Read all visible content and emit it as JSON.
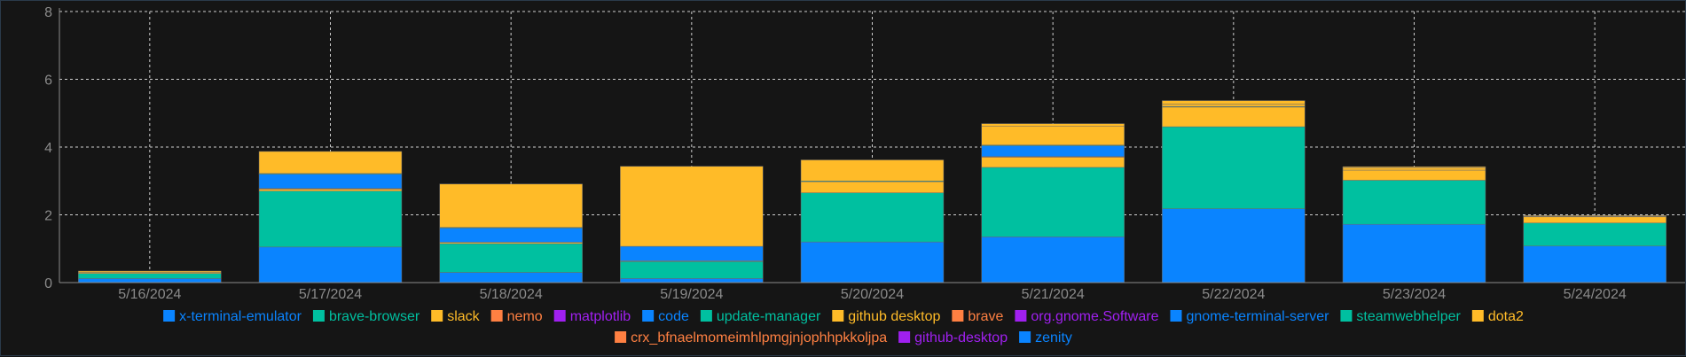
{
  "chart_data": {
    "type": "bar",
    "stacked": true,
    "categories": [
      "5/16/2024",
      "5/17/2024",
      "5/18/2024",
      "5/19/2024",
      "5/20/2024",
      "5/21/2024",
      "5/22/2024",
      "5/23/2024",
      "5/24/2024"
    ],
    "ylim": [
      0,
      8
    ],
    "yticks": [
      0,
      2,
      4,
      6,
      8
    ],
    "grid": true,
    "legend_position": "bottom",
    "series": [
      {
        "name": "x-terminal-emulator",
        "color": "#0a84ff",
        "values": [
          0.12,
          1.05,
          0.3,
          0.12,
          1.2,
          1.35,
          2.18,
          1.72,
          1.08
        ]
      },
      {
        "name": "brave-browser",
        "color": "#00c0a0",
        "values": [
          0.15,
          1.65,
          0.85,
          0.5,
          1.45,
          2.05,
          2.42,
          1.3,
          0.68
        ]
      },
      {
        "name": "slack",
        "color": "#ffbb28",
        "values": [
          0.03,
          0.06,
          0.04,
          0.02,
          0.33,
          0.3,
          0.58,
          0.3,
          0.18
        ]
      },
      {
        "name": "nemo",
        "color": "#ff8042",
        "values": [
          0,
          0.02,
          0,
          0,
          0,
          0.02,
          0,
          0,
          0
        ]
      },
      {
        "name": "matplotlib",
        "color": "#a020f0",
        "values": [
          0,
          0,
          0,
          0,
          0,
          0,
          0,
          0,
          0
        ]
      },
      {
        "name": "code",
        "color": "#0a84ff",
        "values": [
          0,
          0.42,
          0.42,
          0.43,
          0,
          0.32,
          0,
          0,
          0
        ]
      },
      {
        "name": "update-manager",
        "color": "#00c0a0",
        "values": [
          0,
          0.02,
          0.02,
          0,
          0.02,
          0.02,
          0.02,
          0,
          0
        ]
      },
      {
        "name": "github desktop",
        "color": "#ffbb28",
        "values": [
          0.04,
          0.65,
          1.28,
          2.36,
          0.62,
          0.55,
          0.07,
          0.06,
          0.02
        ]
      },
      {
        "name": "brave",
        "color": "#ff8042",
        "values": [
          0,
          0,
          0,
          0,
          0,
          0,
          0,
          0,
          0
        ]
      },
      {
        "name": "org.gnome.Software",
        "color": "#a020f0",
        "values": [
          0,
          0,
          0,
          0,
          0,
          0,
          0,
          0,
          0
        ]
      },
      {
        "name": "gnome-terminal-server",
        "color": "#0a84ff",
        "values": [
          0,
          0,
          0,
          0,
          0,
          0,
          0,
          0,
          0
        ]
      },
      {
        "name": "steamwebhelper",
        "color": "#00c0a0",
        "values": [
          0,
          0,
          0,
          0,
          0,
          0,
          0,
          0,
          0
        ]
      },
      {
        "name": "dota2",
        "color": "#ffbb28",
        "values": [
          0,
          0,
          0,
          0,
          0,
          0.08,
          0.1,
          0.04,
          0.02
        ]
      },
      {
        "name": "crx_bfnaelmomeimhlpmgjnjophhpkkoljpa",
        "color": "#ff8042",
        "values": [
          0,
          0,
          0,
          0,
          0,
          0,
          0,
          0,
          0
        ]
      },
      {
        "name": "github-desktop",
        "color": "#a020f0",
        "values": [
          0,
          0,
          0,
          0,
          0,
          0,
          0,
          0,
          0
        ]
      },
      {
        "name": "zenity",
        "color": "#0a84ff",
        "values": [
          0,
          0,
          0,
          0,
          0,
          0,
          0,
          0,
          0
        ]
      }
    ]
  }
}
